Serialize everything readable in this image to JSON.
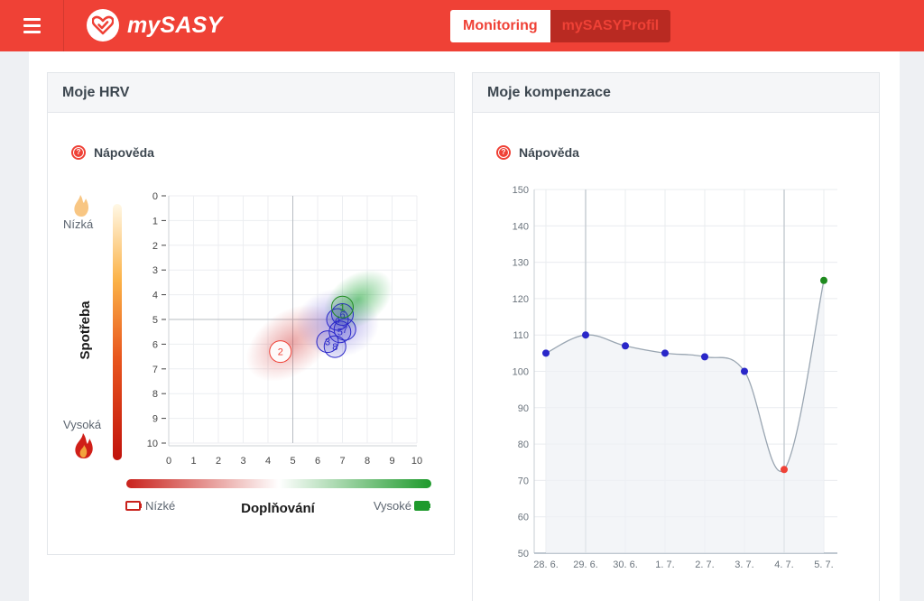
{
  "header": {
    "app_name": "mySASY",
    "tabs": [
      "Monitoring",
      "mySASYProfil"
    ],
    "active_tab": "Monitoring",
    "brand_color": "#ef4136"
  },
  "hrv": {
    "title": "Moje HRV",
    "help_label": "Nápověda",
    "vertical_axis_title": "Spotřeba",
    "vertical_low_label": "Nízká",
    "vertical_high_label": "Vysoká",
    "horizontal_axis_title": "Doplňování",
    "horizontal_low_label": "Nízké",
    "horizontal_high_label": "Vysoké",
    "x_ticks": [
      "0",
      "1",
      "2",
      "3",
      "4",
      "5",
      "6",
      "7",
      "8",
      "9",
      "10"
    ],
    "y_ticks": [
      "0",
      "1",
      "2",
      "3",
      "4",
      "5",
      "6",
      "7",
      "8",
      "9",
      "10"
    ],
    "points": [
      {
        "label": "2",
        "x": 4.5,
        "y": 6.3,
        "color": "#ef4136"
      },
      {
        "label": "3",
        "x": 6.4,
        "y": 5.9,
        "color": "#2a27c9"
      },
      {
        "label": "8",
        "x": 6.7,
        "y": 6.1,
        "color": "#2a27c9"
      },
      {
        "label": "5",
        "x": 6.9,
        "y": 5.5,
        "color": "#2a27c9"
      },
      {
        "label": "4",
        "x": 6.8,
        "y": 5.0,
        "color": "#2a27c9"
      },
      {
        "label": "6",
        "x": 7.0,
        "y": 4.8,
        "color": "#2a27c9"
      },
      {
        "label": "7",
        "x": 7.1,
        "y": 5.4,
        "color": "#2a27c9"
      },
      {
        "label": "1",
        "x": 7.0,
        "y": 4.5,
        "color": "#1e8a1e"
      }
    ]
  },
  "comp": {
    "title": "Moje kompenzace",
    "help_label": "Nápověda"
  },
  "chart_data": {
    "type": "line",
    "categories": [
      "28. 6.",
      "29. 6.",
      "30. 6.",
      "1. 7.",
      "2. 7.",
      "3. 7.",
      "4. 7.",
      "5. 7."
    ],
    "values": [
      105,
      110,
      107,
      105,
      104,
      100,
      73,
      125
    ],
    "point_colors": [
      "#2a27c9",
      "#2a27c9",
      "#2a27c9",
      "#2a27c9",
      "#2a27c9",
      "#2a27c9",
      "#ef4136",
      "#1e8a1e"
    ],
    "y_ticks": [
      "150",
      "140",
      "130",
      "120",
      "110",
      "100",
      "90",
      "80",
      "70",
      "60",
      "50"
    ],
    "ylim": [
      50,
      150
    ],
    "grid": true
  }
}
